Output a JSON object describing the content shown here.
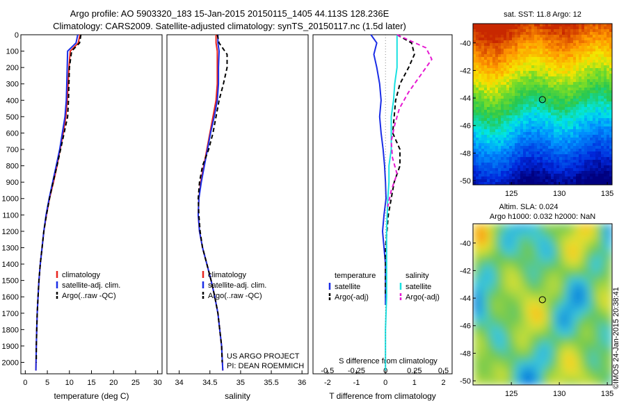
{
  "figure": {
    "title_line1": "Argo profile: AO 5903320_183 15-Jan-2015 20150115_1405 44.113S 128.236E",
    "title_line2": "Climatology: CARS2009. Satellite-adjusted climatology: synTS_20150117.nc (1.5d later)",
    "footer": "©IMOS 24-Jan-2015 20:38:41"
  },
  "colors": {
    "climatology": "#e8251e",
    "satellite": "#1a2de6",
    "argo": "#000000",
    "s_satellite": "#19e1e1",
    "s_argo": "#e619d2"
  },
  "chart_data": [
    {
      "type": "line",
      "panel": "temperature",
      "xlabel": "temperature (deg C)",
      "ylabel": "",
      "xlim": [
        -1,
        31
      ],
      "ylim": [
        2070,
        0
      ],
      "xticks": [
        0,
        5,
        10,
        15,
        20,
        25,
        30
      ],
      "yticks": [
        0,
        100,
        200,
        300,
        400,
        500,
        600,
        700,
        800,
        900,
        1000,
        1100,
        1200,
        1300,
        1400,
        1500,
        1600,
        1700,
        1800,
        1900,
        2000
      ],
      "legend": [
        "climatology",
        "satellite-adj. clim.",
        "Argo(..raw -QC)"
      ],
      "legend_position": "lower-right",
      "series": [
        {
          "name": "climatology",
          "style": "solid",
          "color_key": "climatology",
          "x": [
            12.4,
            12.0,
            10.2,
            9.9,
            9.7,
            9.5,
            9.2,
            8.6,
            7.9,
            7.2,
            6.4,
            5.5,
            4.8,
            4.2,
            3.8,
            3.4,
            3.1,
            2.9,
            2.7,
            2.6,
            2.5,
            2.4
          ],
          "y": [
            0,
            50,
            100,
            200,
            300,
            400,
            500,
            600,
            700,
            800,
            900,
            1000,
            1100,
            1200,
            1300,
            1400,
            1500,
            1600,
            1700,
            1800,
            1900,
            2050
          ]
        },
        {
          "name": "satellite-adj. clim.",
          "style": "solid",
          "color_key": "satellite",
          "x": [
            11.9,
            11.5,
            9.6,
            9.5,
            9.4,
            9.3,
            9.0,
            8.4,
            7.8,
            7.0,
            6.2,
            5.4,
            4.7,
            4.2,
            3.8,
            3.4,
            3.1,
            2.9,
            2.7,
            2.6,
            2.5,
            2.4
          ],
          "y": [
            0,
            50,
            100,
            200,
            300,
            400,
            500,
            600,
            700,
            800,
            900,
            1000,
            1100,
            1200,
            1300,
            1400,
            1500,
            1600,
            1700,
            1800,
            1900,
            2050
          ]
        },
        {
          "name": "Argo(..raw -QC)",
          "style": "dashed",
          "color_key": "argo",
          "x": [
            12.6,
            12.3,
            10.5,
            10.0,
            9.9,
            9.8,
            9.6,
            8.8,
            8.0,
            7.2,
            6.3,
            5.5,
            4.8,
            4.2,
            3.8,
            3.4,
            3.1,
            2.9,
            2.7,
            2.6,
            2.5,
            2.5
          ],
          "y": [
            0,
            50,
            100,
            200,
            300,
            400,
            500,
            600,
            700,
            800,
            900,
            1000,
            1100,
            1200,
            1300,
            1400,
            1500,
            1600,
            1700,
            1800,
            1900,
            2000
          ]
        }
      ]
    },
    {
      "type": "line",
      "panel": "salinity",
      "xlabel": "salinity",
      "ylabel": "",
      "xlim": [
        33.8,
        36.1
      ],
      "ylim": [
        2070,
        0
      ],
      "xticks": [
        34,
        34.5,
        35,
        35.5,
        36
      ],
      "yticks": [],
      "legend": [
        "climatology",
        "satellite-adj. clim.",
        "Argo(..raw -QC)"
      ],
      "legend_position": "lower-right",
      "annotations": [
        "US ARGO PROJECT",
        "PI: DEAN ROEMMICH"
      ],
      "series": [
        {
          "name": "climatology",
          "style": "solid",
          "color_key": "climatology",
          "x": [
            34.6,
            34.6,
            34.62,
            34.62,
            34.62,
            34.6,
            34.55,
            34.5,
            34.45,
            34.4,
            34.35,
            34.32,
            34.31,
            34.33,
            34.38,
            34.45,
            34.52,
            34.58,
            34.63,
            34.66,
            34.69,
            34.71
          ],
          "y": [
            0,
            50,
            100,
            200,
            300,
            400,
            500,
            600,
            700,
            800,
            900,
            1000,
            1100,
            1200,
            1300,
            1400,
            1500,
            1600,
            1700,
            1800,
            1900,
            2050
          ]
        },
        {
          "name": "satellite-adj. clim.",
          "style": "solid",
          "color_key": "satellite",
          "x": [
            34.63,
            34.63,
            34.65,
            34.64,
            34.64,
            34.62,
            34.57,
            34.51,
            34.46,
            34.41,
            34.36,
            34.32,
            34.31,
            34.33,
            34.38,
            34.45,
            34.52,
            34.58,
            34.63,
            34.66,
            34.69,
            34.71
          ],
          "y": [
            0,
            50,
            100,
            200,
            300,
            400,
            500,
            600,
            700,
            800,
            900,
            1000,
            1100,
            1200,
            1300,
            1400,
            1500,
            1600,
            1700,
            1800,
            1900,
            2050
          ]
        },
        {
          "name": "Argo(..raw -QC)",
          "style": "dashed",
          "color_key": "argo",
          "x": [
            34.62,
            34.65,
            34.78,
            34.78,
            34.72,
            34.65,
            34.6,
            34.55,
            34.48,
            34.38,
            34.33,
            34.31,
            34.32,
            34.34,
            34.38,
            34.45,
            34.52,
            34.58,
            34.63,
            34.66,
            34.69,
            34.7
          ],
          "y": [
            0,
            50,
            120,
            200,
            300,
            400,
            500,
            600,
            700,
            800,
            900,
            1000,
            1100,
            1200,
            1300,
            1400,
            1500,
            1600,
            1700,
            1800,
            1900,
            2000
          ]
        }
      ]
    },
    {
      "type": "line",
      "panel": "difference",
      "xlabel": "T difference from climatology",
      "x2label": "S difference from climatology",
      "ylabel": "",
      "xlim": [
        -2.5,
        2.3
      ],
      "ylim": [
        2070,
        0
      ],
      "xticks": [
        -2,
        -1,
        0,
        1,
        2
      ],
      "x2ticks": [
        -0.5,
        -0.25,
        0,
        0.25,
        0.5
      ],
      "x2ticklabels": [
        "-0.5",
        "-0.25",
        "0",
        "0.25",
        "0.5"
      ],
      "yticks": [],
      "legend_titles": [
        "temperature",
        "salinity"
      ],
      "legend": [
        "satellite",
        "Argo(-adj)",
        "satellite",
        "Argo(-adj)"
      ],
      "legend_position": "lower-center",
      "series": [
        {
          "name": "satellite",
          "group": "temperature",
          "style": "solid",
          "color_key": "satellite",
          "x": [
            -0.5,
            -0.3,
            -0.4,
            -0.3,
            -0.2,
            -0.15,
            -0.2,
            -0.15,
            -0.08,
            -0.03,
            0,
            0.02,
            -0.05,
            -0.1,
            -0.05,
            0,
            0
          ],
          "y": [
            0,
            50,
            120,
            200,
            300,
            400,
            500,
            600,
            700,
            800,
            900,
            1000,
            1100,
            1200,
            1300,
            1400,
            1650
          ]
        },
        {
          "name": "Argo(-adj)",
          "group": "temperature",
          "style": "dashed",
          "color_key": "argo",
          "x": [
            0.4,
            0.9,
            1.0,
            0.8,
            0.5,
            0.35,
            0.3,
            0.25,
            0.5,
            0.5,
            0.3,
            0.2,
            0.1,
            0.05,
            0,
            0,
            0
          ],
          "y": [
            0,
            50,
            120,
            200,
            300,
            400,
            500,
            600,
            700,
            800,
            900,
            1000,
            1100,
            1200,
            1300,
            1400,
            1600
          ]
        },
        {
          "name": "satellite",
          "group": "salinity",
          "style": "solid",
          "color_key": "s_satellite",
          "x": [
            0.1,
            0.1,
            0.1,
            0.08,
            0.07,
            0.05,
            0.05,
            0.05,
            0.03,
            0.03,
            0.02,
            0.01,
            0.01,
            0.01,
            0,
            0,
            0
          ],
          "y": [
            0,
            100,
            200,
            300,
            400,
            500,
            600,
            700,
            800,
            900,
            1000,
            1200,
            1400,
            1600,
            1800,
            1900,
            2050
          ]
        },
        {
          "name": "Argo(-adj)",
          "group": "salinity",
          "style": "dashed",
          "color_key": "s_argo",
          "x": [
            0.1,
            0.35,
            0.4,
            0.3,
            0.2,
            0.12,
            0.08,
            0.05,
            0.06,
            0.1,
            0.05,
            0.02
          ],
          "y": [
            0,
            80,
            150,
            250,
            350,
            450,
            550,
            650,
            750,
            850,
            950,
            1050
          ]
        }
      ]
    },
    {
      "type": "heatmap",
      "panel": "sst_map",
      "title": "sat. SST: 11.8 Argo: 12",
      "xlim": [
        121,
        135.5
      ],
      "ylim": [
        -50.3,
        -38.6
      ],
      "xticks": [
        125,
        130,
        135
      ],
      "yticks": [
        -40,
        -42,
        -44,
        -46,
        -48,
        -50
      ],
      "marker": {
        "lon": 128.236,
        "lat": -44.113
      }
    },
    {
      "type": "heatmap",
      "panel": "sla_map",
      "title_line1": "Altim. SLA: 0.024",
      "title_line2": "Argo h1000: 0.032 h2000: NaN",
      "xlim": [
        121,
        135.5
      ],
      "ylim": [
        -50.3,
        -38.6
      ],
      "xticks": [
        125,
        130,
        135
      ],
      "yticks": [
        -40,
        -42,
        -44,
        -46,
        -48,
        -50
      ],
      "marker": {
        "lon": 128.236,
        "lat": -44.113
      }
    }
  ]
}
